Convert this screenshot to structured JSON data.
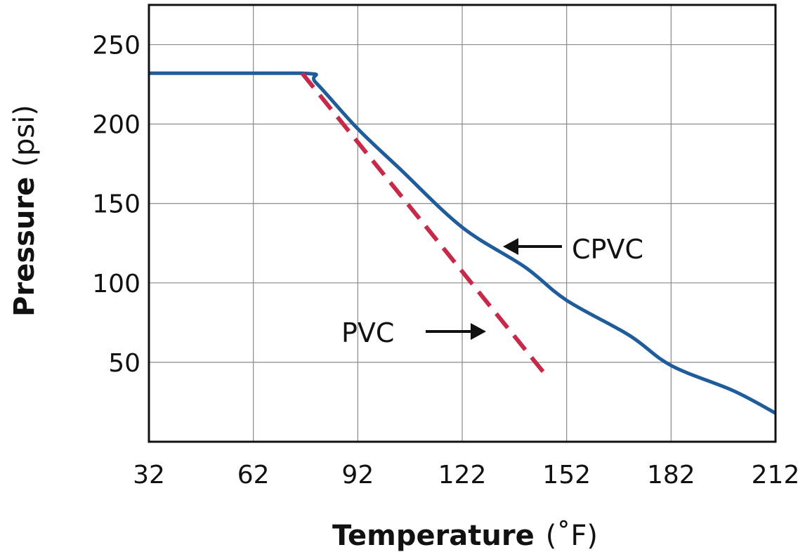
{
  "chart_data": {
    "type": "line",
    "xlabel": {
      "main": "Temperature",
      "unit": "(˚F)"
    },
    "ylabel": {
      "main": "Pressure",
      "unit": "(psi)"
    },
    "xlim": [
      32,
      212
    ],
    "ylim": [
      0,
      275
    ],
    "x_ticks": [
      32,
      62,
      92,
      122,
      152,
      182,
      212
    ],
    "y_ticks": [
      50,
      100,
      150,
      200,
      250
    ],
    "grid": true,
    "series": [
      {
        "name": "CPVC",
        "color": "#1f5c9b",
        "style": "solid",
        "x": [
          32,
          76,
          80,
          92,
          104,
          122,
          140,
          152,
          170,
          182,
          200,
          212
        ],
        "y": [
          232,
          232,
          226,
          197,
          172,
          135,
          110,
          89,
          67,
          48,
          32,
          18
        ]
      },
      {
        "name": "PVC",
        "color": "#c62a48",
        "style": "dashed",
        "x": [
          76,
          146
        ],
        "y": [
          232,
          42
        ]
      }
    ],
    "annotations": [
      {
        "text": "CPVC",
        "series": "CPVC",
        "arrow": "left"
      },
      {
        "text": "PVC",
        "series": "PVC",
        "arrow": "right"
      }
    ]
  }
}
